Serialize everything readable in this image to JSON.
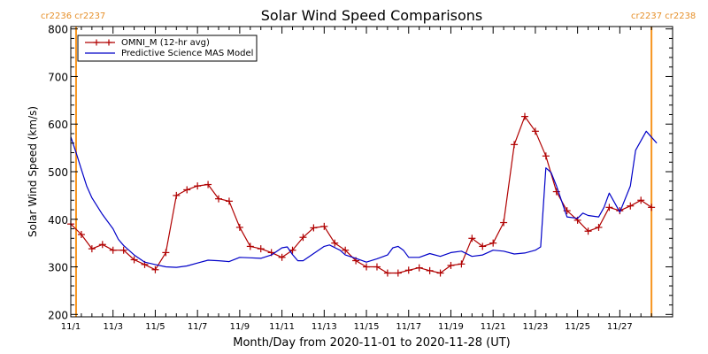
{
  "chart_data": {
    "type": "line",
    "title": "Solar Wind Speed Comparisons",
    "xlabel": "Month/Day from 2020-11-01 to 2020-11-28 (UT)",
    "ylabel": "Solar Wind Speed (km/s)",
    "ylim": [
      195,
      805
    ],
    "xlim": [
      "2020-11-01",
      "2020-11-29 12:00"
    ],
    "y_ticks": [
      "200",
      "300",
      "400",
      "500",
      "600",
      "700",
      "800"
    ],
    "x_ticks": [
      {
        "x": "2020-11-01",
        "label": "11/1"
      },
      {
        "x": "2020-11-03",
        "label": "11/3"
      },
      {
        "x": "2020-11-05",
        "label": "11/5"
      },
      {
        "x": "2020-11-07",
        "label": "11/7"
      },
      {
        "x": "2020-11-09",
        "label": "11/9"
      },
      {
        "x": "2020-11-11",
        "label": "11/11"
      },
      {
        "x": "2020-11-13",
        "label": "11/13"
      },
      {
        "x": "2020-11-15",
        "label": "11/15"
      },
      {
        "x": "2020-11-17",
        "label": "11/17"
      },
      {
        "x": "2020-11-19",
        "label": "11/19"
      },
      {
        "x": "2020-11-21",
        "label": "11/21"
      },
      {
        "x": "2020-11-23",
        "label": "11/23"
      },
      {
        "x": "2020-11-25",
        "label": "11/25"
      },
      {
        "x": "2020-11-27",
        "label": "11/27"
      }
    ],
    "carrington_markers": [
      {
        "x": "2020-11-01 06:00",
        "labels": [
          "cr2236",
          "cr2237"
        ]
      },
      {
        "x": "2020-11-28 12:00",
        "labels": [
          "cr2237",
          "cr2238"
        ]
      }
    ],
    "marker_color": "#f7941d",
    "legend": {
      "position": "top-left"
    },
    "series": [
      {
        "name": "OMNI_M (12-hr avg)",
        "color": "#b00000",
        "marker": "plus",
        "points": [
          [
            "2020-11-01 00:00",
            390
          ],
          [
            "2020-11-01 12:00",
            368
          ],
          [
            "2020-11-02 00:00",
            338
          ],
          [
            "2020-11-02 12:00",
            347
          ],
          [
            "2020-11-03 00:00",
            335
          ],
          [
            "2020-11-03 12:00",
            335
          ],
          [
            "2020-11-04 00:00",
            315
          ],
          [
            "2020-11-04 12:00",
            305
          ],
          [
            "2020-11-05 00:00",
            294
          ],
          [
            "2020-11-05 12:00",
            330
          ],
          [
            "2020-11-06 00:00",
            450
          ],
          [
            "2020-11-06 12:00",
            462
          ],
          [
            "2020-11-07 00:00",
            470
          ],
          [
            "2020-11-07 12:00",
            473
          ],
          [
            "2020-11-08 00:00",
            443
          ],
          [
            "2020-11-08 12:00",
            438
          ],
          [
            "2020-11-09 00:00",
            383
          ],
          [
            "2020-11-09 12:00",
            343
          ],
          [
            "2020-11-10 00:00",
            338
          ],
          [
            "2020-11-10 12:00",
            330
          ],
          [
            "2020-11-11 00:00",
            320
          ],
          [
            "2020-11-11 12:00",
            335
          ],
          [
            "2020-11-12 00:00",
            362
          ],
          [
            "2020-11-12 12:00",
            382
          ],
          [
            "2020-11-13 00:00",
            385
          ],
          [
            "2020-11-13 12:00",
            350
          ],
          [
            "2020-11-14 00:00",
            335
          ],
          [
            "2020-11-14 12:00",
            313
          ],
          [
            "2020-11-15 00:00",
            300
          ],
          [
            "2020-11-15 12:00",
            300
          ],
          [
            "2020-11-16 00:00",
            287
          ],
          [
            "2020-11-16 12:00",
            287
          ],
          [
            "2020-11-17 00:00",
            293
          ],
          [
            "2020-11-17 12:00",
            298
          ],
          [
            "2020-11-18 00:00",
            292
          ],
          [
            "2020-11-18 12:00",
            287
          ],
          [
            "2020-11-19 00:00",
            303
          ],
          [
            "2020-11-19 12:00",
            306
          ],
          [
            "2020-11-20 00:00",
            360
          ],
          [
            "2020-11-20 12:00",
            343
          ],
          [
            "2020-11-21 00:00",
            350
          ],
          [
            "2020-11-21 12:00",
            393
          ],
          [
            "2020-11-22 00:00",
            557
          ],
          [
            "2020-11-22 12:00",
            616
          ],
          [
            "2020-11-23 00:00",
            585
          ],
          [
            "2020-11-23 12:00",
            533
          ],
          [
            "2020-11-24 00:00",
            458
          ],
          [
            "2020-11-24 12:00",
            418
          ],
          [
            "2020-11-25 00:00",
            398
          ],
          [
            "2020-11-25 12:00",
            375
          ],
          [
            "2020-11-26 00:00",
            383
          ],
          [
            "2020-11-26 12:00",
            425
          ],
          [
            "2020-11-27 00:00",
            418
          ],
          [
            "2020-11-27 12:00",
            428
          ],
          [
            "2020-11-28 00:00",
            440
          ],
          [
            "2020-11-28 12:00",
            425
          ]
        ]
      },
      {
        "name": "Predictive Science MAS Model",
        "color": "#0000c8",
        "marker": "none",
        "points": [
          [
            "2020-11-01 00:00",
            573
          ],
          [
            "2020-11-01 06:00",
            540
          ],
          [
            "2020-11-01 12:00",
            505
          ],
          [
            "2020-11-01 18:00",
            470
          ],
          [
            "2020-11-02 00:00",
            445
          ],
          [
            "2020-11-02 12:00",
            410
          ],
          [
            "2020-11-03 00:00",
            380
          ],
          [
            "2020-11-03 06:00",
            358
          ],
          [
            "2020-11-03 12:00",
            345
          ],
          [
            "2020-11-04 00:00",
            325
          ],
          [
            "2020-11-04 12:00",
            310
          ],
          [
            "2020-11-05 00:00",
            305
          ],
          [
            "2020-11-05 12:00",
            300
          ],
          [
            "2020-11-06 00:00",
            299
          ],
          [
            "2020-11-06 12:00",
            302
          ],
          [
            "2020-11-07 00:00",
            308
          ],
          [
            "2020-11-07 12:00",
            314
          ],
          [
            "2020-11-08 00:00",
            313
          ],
          [
            "2020-11-08 12:00",
            311
          ],
          [
            "2020-11-09 00:00",
            320
          ],
          [
            "2020-11-09 12:00",
            319
          ],
          [
            "2020-11-10 00:00",
            318
          ],
          [
            "2020-11-10 12:00",
            325
          ],
          [
            "2020-11-11 00:00",
            340
          ],
          [
            "2020-11-11 06:00",
            342
          ],
          [
            "2020-11-11 12:00",
            326
          ],
          [
            "2020-11-11 18:00",
            313
          ],
          [
            "2020-11-12 00:00",
            313
          ],
          [
            "2020-11-12 12:00",
            328
          ],
          [
            "2020-11-13 00:00",
            343
          ],
          [
            "2020-11-13 06:00",
            346
          ],
          [
            "2020-11-13 18:00",
            335
          ],
          [
            "2020-11-14 00:00",
            325
          ],
          [
            "2020-11-14 12:00",
            318
          ],
          [
            "2020-11-15 00:00",
            310
          ],
          [
            "2020-11-15 12:00",
            317
          ],
          [
            "2020-11-16 00:00",
            325
          ],
          [
            "2020-11-16 06:00",
            340
          ],
          [
            "2020-11-16 12:00",
            343
          ],
          [
            "2020-11-16 18:00",
            335
          ],
          [
            "2020-11-17 00:00",
            320
          ],
          [
            "2020-11-17 12:00",
            320
          ],
          [
            "2020-11-18 00:00",
            328
          ],
          [
            "2020-11-18 12:00",
            322
          ],
          [
            "2020-11-19 00:00",
            330
          ],
          [
            "2020-11-19 12:00",
            333
          ],
          [
            "2020-11-20 00:00",
            322
          ],
          [
            "2020-11-20 12:00",
            325
          ],
          [
            "2020-11-21 00:00",
            335
          ],
          [
            "2020-11-21 12:00",
            333
          ],
          [
            "2020-11-22 00:00",
            327
          ],
          [
            "2020-11-22 12:00",
            329
          ],
          [
            "2020-11-23 00:00",
            335
          ],
          [
            "2020-11-23 06:00",
            342
          ],
          [
            "2020-11-23 12:00",
            508
          ],
          [
            "2020-11-23 18:00",
            498
          ],
          [
            "2020-11-24 00:00",
            470
          ],
          [
            "2020-11-24 12:00",
            405
          ],
          [
            "2020-11-25 00:00",
            402
          ],
          [
            "2020-11-25 06:00",
            413
          ],
          [
            "2020-11-25 12:00",
            408
          ],
          [
            "2020-11-26 00:00",
            405
          ],
          [
            "2020-11-26 06:00",
            425
          ],
          [
            "2020-11-26 12:00",
            455
          ],
          [
            "2020-11-27 00:00",
            415
          ],
          [
            "2020-11-27 12:00",
            470
          ],
          [
            "2020-11-27 18:00",
            545
          ],
          [
            "2020-11-28 06:00",
            585
          ],
          [
            "2020-11-28 18:00",
            560
          ]
        ]
      }
    ]
  }
}
